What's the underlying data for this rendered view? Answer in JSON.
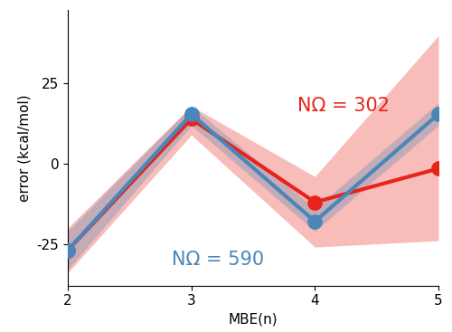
{
  "chart_data": {
    "type": "line",
    "x_label": "MBE(n)",
    "y_label": "error (kcal/mol)",
    "x": [
      2,
      3,
      4,
      5
    ],
    "series": [
      {
        "name": "NΩ = 302",
        "color": "#e8231a",
        "marker": "o",
        "line_style": "solid",
        "values": [
          -27,
          14,
          -12,
          -1.5
        ],
        "lower": [
          -34,
          9,
          -26,
          -24
        ],
        "upper": [
          -20,
          18,
          -4,
          40
        ]
      },
      {
        "name": "NΩ = 590",
        "color": "#4a86b8",
        "marker": "o",
        "line_style": "solid",
        "values": [
          -27,
          15.5,
          -18,
          15.5
        ],
        "lower": [
          -33,
          12,
          -21,
          12
        ],
        "upper": [
          -21,
          18,
          -14,
          19
        ]
      }
    ],
    "xlim": [
      2,
      5
    ],
    "ylim": [
      -38,
      48
    ],
    "xticks": [
      2,
      3,
      4,
      5
    ],
    "yticks": [
      -25,
      0,
      25
    ],
    "grid": false
  }
}
